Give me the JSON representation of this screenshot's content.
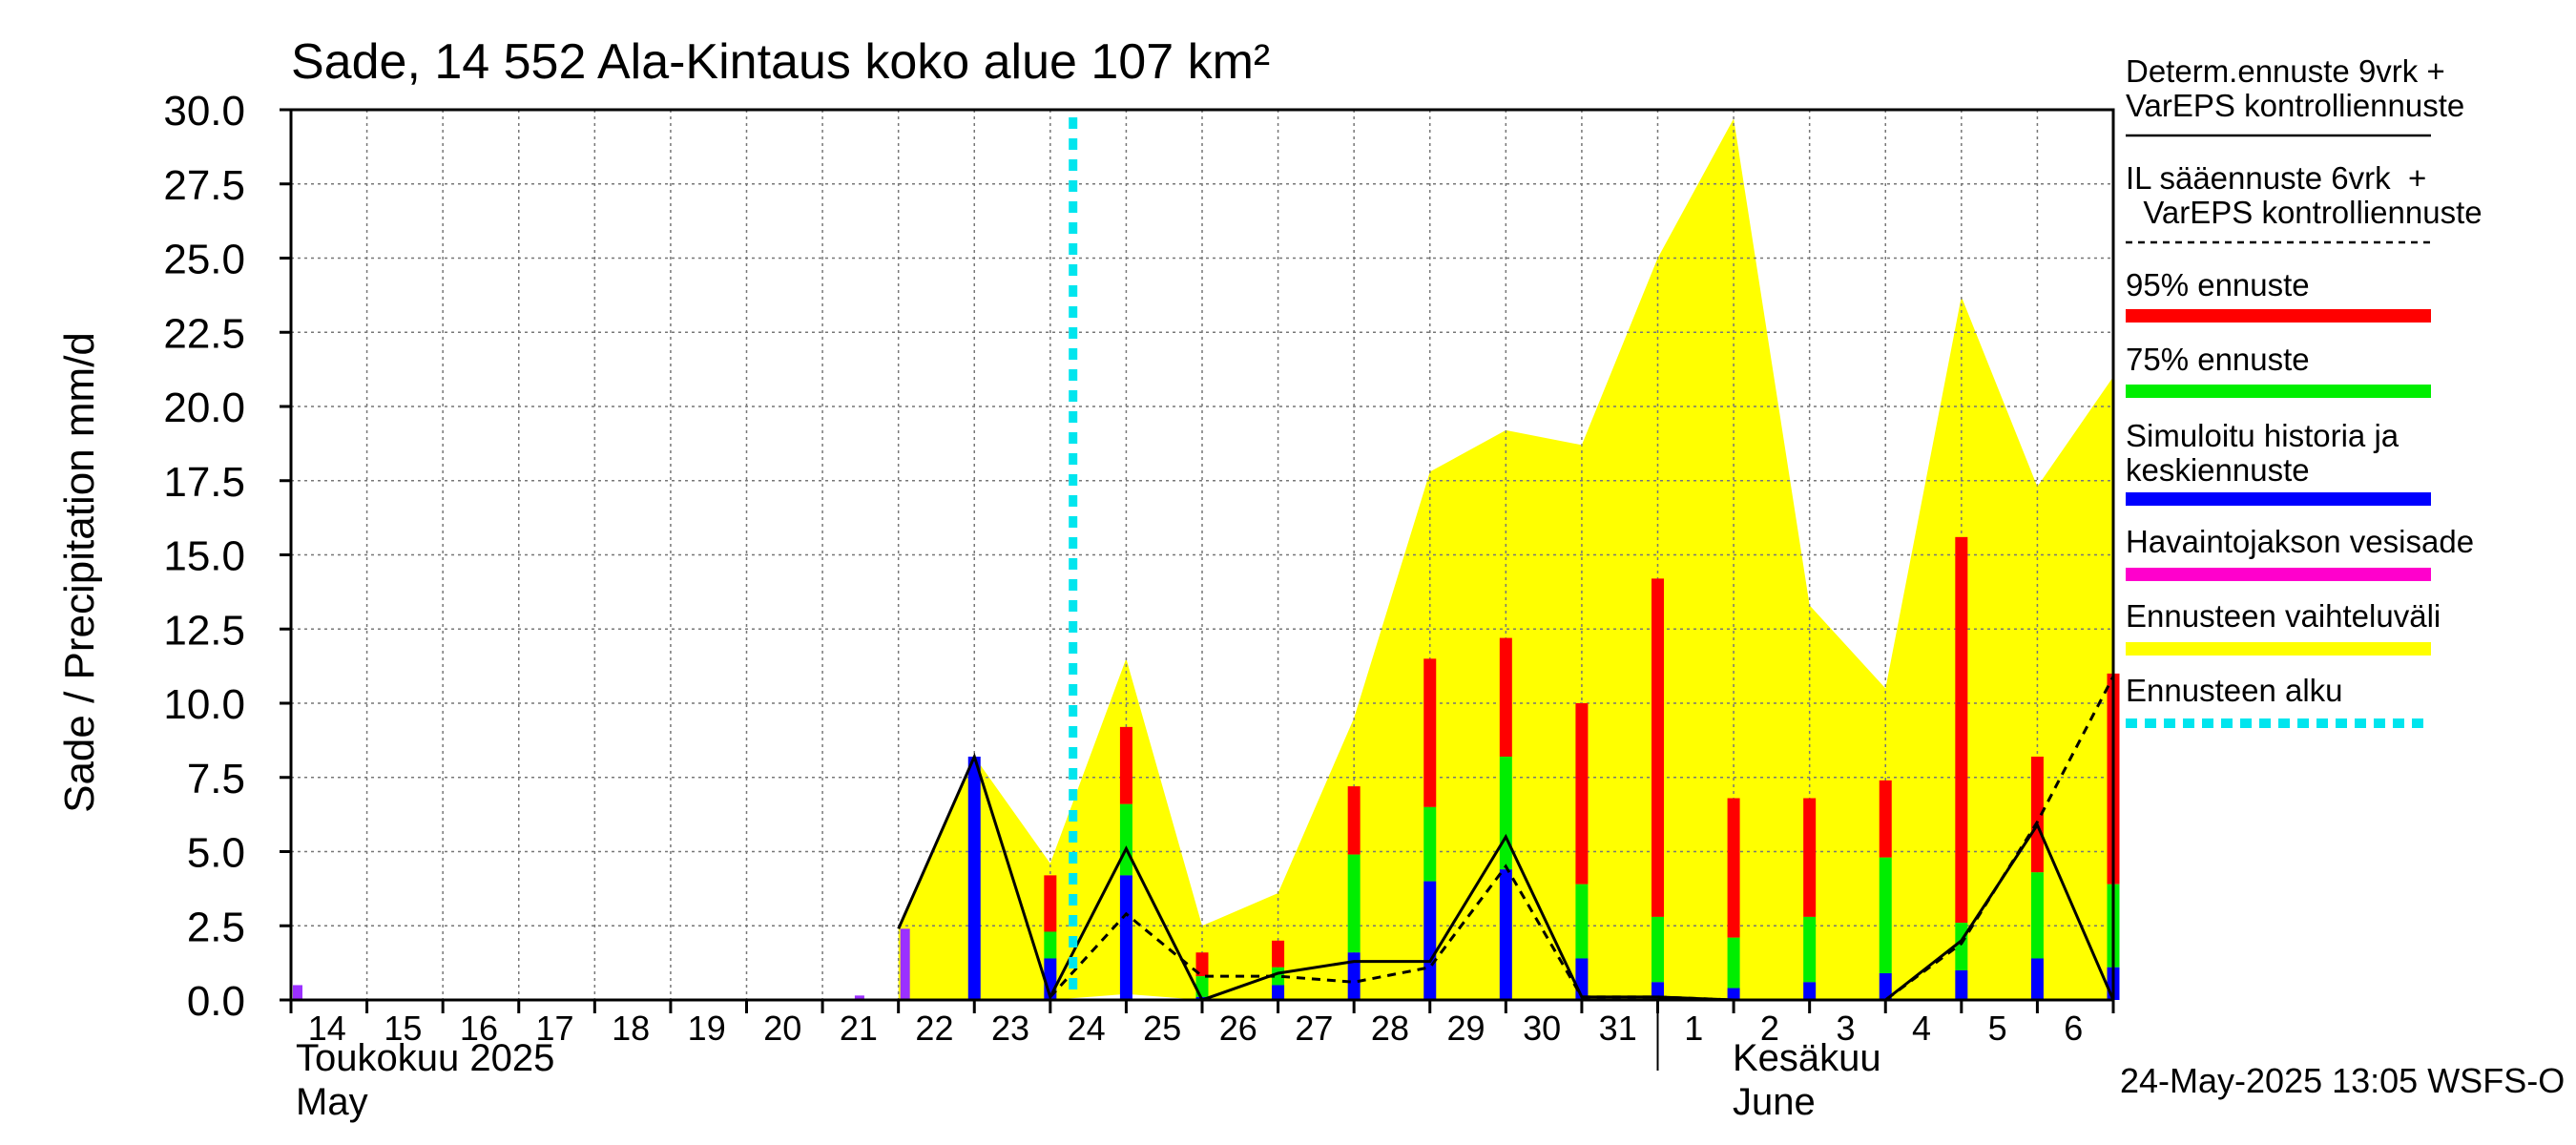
{
  "chart_data": {
    "type": "bar",
    "title": "Sade, 14 552 Ala-Kintaus koko alue 107 km²",
    "ylabel": "Sade / Precipitation   mm/d",
    "ylim": [
      0,
      30
    ],
    "yticks": [
      "0.0",
      "2.5",
      "5.0",
      "7.5",
      "10.0",
      "12.5",
      "15.0",
      "17.5",
      "20.0",
      "22.5",
      "25.0",
      "27.5",
      "30.0"
    ],
    "grid": true,
    "day_labels": [
      "14",
      "15",
      "16",
      "17",
      "18",
      "19",
      "20",
      "21",
      "22",
      "23",
      "24",
      "25",
      "26",
      "27",
      "28",
      "29",
      "30",
      "31",
      "1",
      "2",
      "3",
      "4",
      "5",
      "6"
    ],
    "month_labels": [
      {
        "fi": "Toukokuu  2025",
        "en": "May"
      },
      {
        "fi": "Kesäkuu",
        "en": "June"
      }
    ],
    "footer": "24-May-2025 13:05 WSFS-O",
    "forecast_start_day": 10.3,
    "observed_rain": [
      {
        "day": 0,
        "value": 0.5,
        "color": "#9b30ff"
      },
      {
        "day": 7.4,
        "value": 0.15,
        "color": "#9b30ff"
      },
      {
        "day": 8.0,
        "value": 2.4,
        "color": "#9b30ff"
      }
    ],
    "forecast_bars": [
      {
        "day": 9.0,
        "p95": 8.2,
        "p75": 8.2,
        "median": 8.2
      },
      {
        "day": 10.0,
        "p95": 4.2,
        "p75": 2.3,
        "median": 1.4
      },
      {
        "day": 11.0,
        "p95": 9.2,
        "p75": 6.6,
        "median": 4.2
      },
      {
        "day": 12.0,
        "p95": 1.6,
        "p75": 0.8,
        "median": 0.1
      },
      {
        "day": 13.0,
        "p95": 2.0,
        "p75": 1.1,
        "median": 0.5
      },
      {
        "day": 14.0,
        "p95": 7.2,
        "p75": 4.9,
        "median": 1.6
      },
      {
        "day": 15.0,
        "p95": 11.5,
        "p75": 6.5,
        "median": 4.0
      },
      {
        "day": 16.0,
        "p95": 12.2,
        "p75": 8.2,
        "median": 4.4
      },
      {
        "day": 17.0,
        "p95": 10.0,
        "p75": 3.9,
        "median": 1.4
      },
      {
        "day": 18.0,
        "p95": 14.2,
        "p75": 2.8,
        "median": 0.6
      },
      {
        "day": 19.0,
        "p95": 6.8,
        "p75": 2.1,
        "median": 0.4
      },
      {
        "day": 20.0,
        "p95": 6.8,
        "p75": 2.8,
        "median": 0.6
      },
      {
        "day": 21.0,
        "p95": 7.4,
        "p75": 4.8,
        "median": 0.9
      },
      {
        "day": 22.0,
        "p95": 15.6,
        "p75": 2.6,
        "median": 1.0
      },
      {
        "day": 23.0,
        "p95": 8.2,
        "p75": 4.3,
        "median": 1.4
      },
      {
        "day": 24.0,
        "p95": 11.0,
        "p75": 3.9,
        "median": 1.1
      }
    ],
    "range_band": [
      {
        "day": 8.0,
        "lower": 0.0,
        "upper": 2.4
      },
      {
        "day": 9.0,
        "lower": 0.0,
        "upper": 8.2
      },
      {
        "day": 10.0,
        "lower": 0.0,
        "upper": 4.6
      },
      {
        "day": 11.0,
        "lower": 0.2,
        "upper": 11.5
      },
      {
        "day": 12.0,
        "lower": 0.0,
        "upper": 2.5
      },
      {
        "day": 13.0,
        "lower": 0.0,
        "upper": 3.6
      },
      {
        "day": 14.0,
        "lower": 0.0,
        "upper": 9.5
      },
      {
        "day": 15.0,
        "lower": 0.0,
        "upper": 17.8
      },
      {
        "day": 16.0,
        "lower": 0.0,
        "upper": 19.2
      },
      {
        "day": 17.0,
        "lower": 0.0,
        "upper": 18.7
      },
      {
        "day": 18.0,
        "lower": 0.0,
        "upper": 25.0
      },
      {
        "day": 19.0,
        "lower": 0.0,
        "upper": 29.7
      },
      {
        "day": 20.0,
        "lower": 0.0,
        "upper": 13.3
      },
      {
        "day": 21.0,
        "lower": 0.0,
        "upper": 10.5
      },
      {
        "day": 22.0,
        "lower": 0.0,
        "upper": 23.7
      },
      {
        "day": 23.0,
        "lower": 0.0,
        "upper": 17.3
      },
      {
        "day": 24.0,
        "lower": 0.0,
        "upper": 21.0
      }
    ],
    "determ_line": [
      {
        "day": 8.0,
        "value": 2.4
      },
      {
        "day": 9.0,
        "value": 8.2
      },
      {
        "day": 10.0,
        "value": 0.1
      },
      {
        "day": 11.0,
        "value": 5.1
      },
      {
        "day": 12.0,
        "value": 0.0
      },
      {
        "day": 13.0,
        "value": 0.9
      },
      {
        "day": 14.0,
        "value": 1.3
      },
      {
        "day": 15.0,
        "value": 1.3
      },
      {
        "day": 16.0,
        "value": 5.5
      },
      {
        "day": 17.0,
        "value": 0.1
      },
      {
        "day": 18.0,
        "value": 0.1
      },
      {
        "day": 19.0,
        "value": 0.0
      },
      {
        "day": 20.0,
        "value": 0.0
      },
      {
        "day": 21.0,
        "value": 0.0
      },
      {
        "day": 22.0,
        "value": 2.0
      },
      {
        "day": 23.0,
        "value": 5.9
      },
      {
        "day": 24.0,
        "value": 0.0
      }
    ],
    "il_line": [
      {
        "day": 10.0,
        "value": 0.1
      },
      {
        "day": 11.0,
        "value": 2.9
      },
      {
        "day": 12.0,
        "value": 0.8
      },
      {
        "day": 13.0,
        "value": 0.8
      },
      {
        "day": 14.0,
        "value": 0.6
      },
      {
        "day": 15.0,
        "value": 1.1
      },
      {
        "day": 16.0,
        "value": 4.5
      },
      {
        "day": 17.0,
        "value": 0.1
      },
      {
        "day": 18.0,
        "value": 0.1
      },
      {
        "day": 19.0,
        "value": 0.0
      },
      {
        "day": 20.0,
        "value": 0.0
      },
      {
        "day": 21.0,
        "value": 0.0
      },
      {
        "day": 22.0,
        "value": 1.9
      },
      {
        "day": 23.0,
        "value": 6.0
      },
      {
        "day": 24.0,
        "value": 10.9
      }
    ],
    "legend": [
      {
        "label": "Determ.ennuste 9vrk +\nVarEPS kontrolliennuste",
        "style": "solid",
        "color": "#000000"
      },
      {
        "label": "IL sääennuste 6vrk  +\n  VarEPS kontrolliennuste",
        "style": "dashed",
        "color": "#000000"
      },
      {
        "label": "95% ennuste",
        "style": "bar",
        "color": "#ff0000"
      },
      {
        "label": "75% ennuste",
        "style": "bar",
        "color": "#00ee00"
      },
      {
        "label": "Simuloitu historia ja\nkeskiennuste",
        "style": "bar",
        "color": "#0000ff"
      },
      {
        "label": "Havaintojakson vesisade",
        "style": "bar",
        "color": "#ff00cc"
      },
      {
        "label": "Ennusteen vaihteluväli",
        "style": "bar",
        "color": "#ffff00"
      },
      {
        "label": "Ennusteen alku",
        "style": "dotted",
        "color": "#00e5ee"
      }
    ],
    "colors": {
      "p95": "#ff0000",
      "p75": "#00ee00",
      "median": "#0000ff",
      "observed": "#9b30ff",
      "band": "#ffff00",
      "forecast_start": "#00e5ee"
    }
  }
}
